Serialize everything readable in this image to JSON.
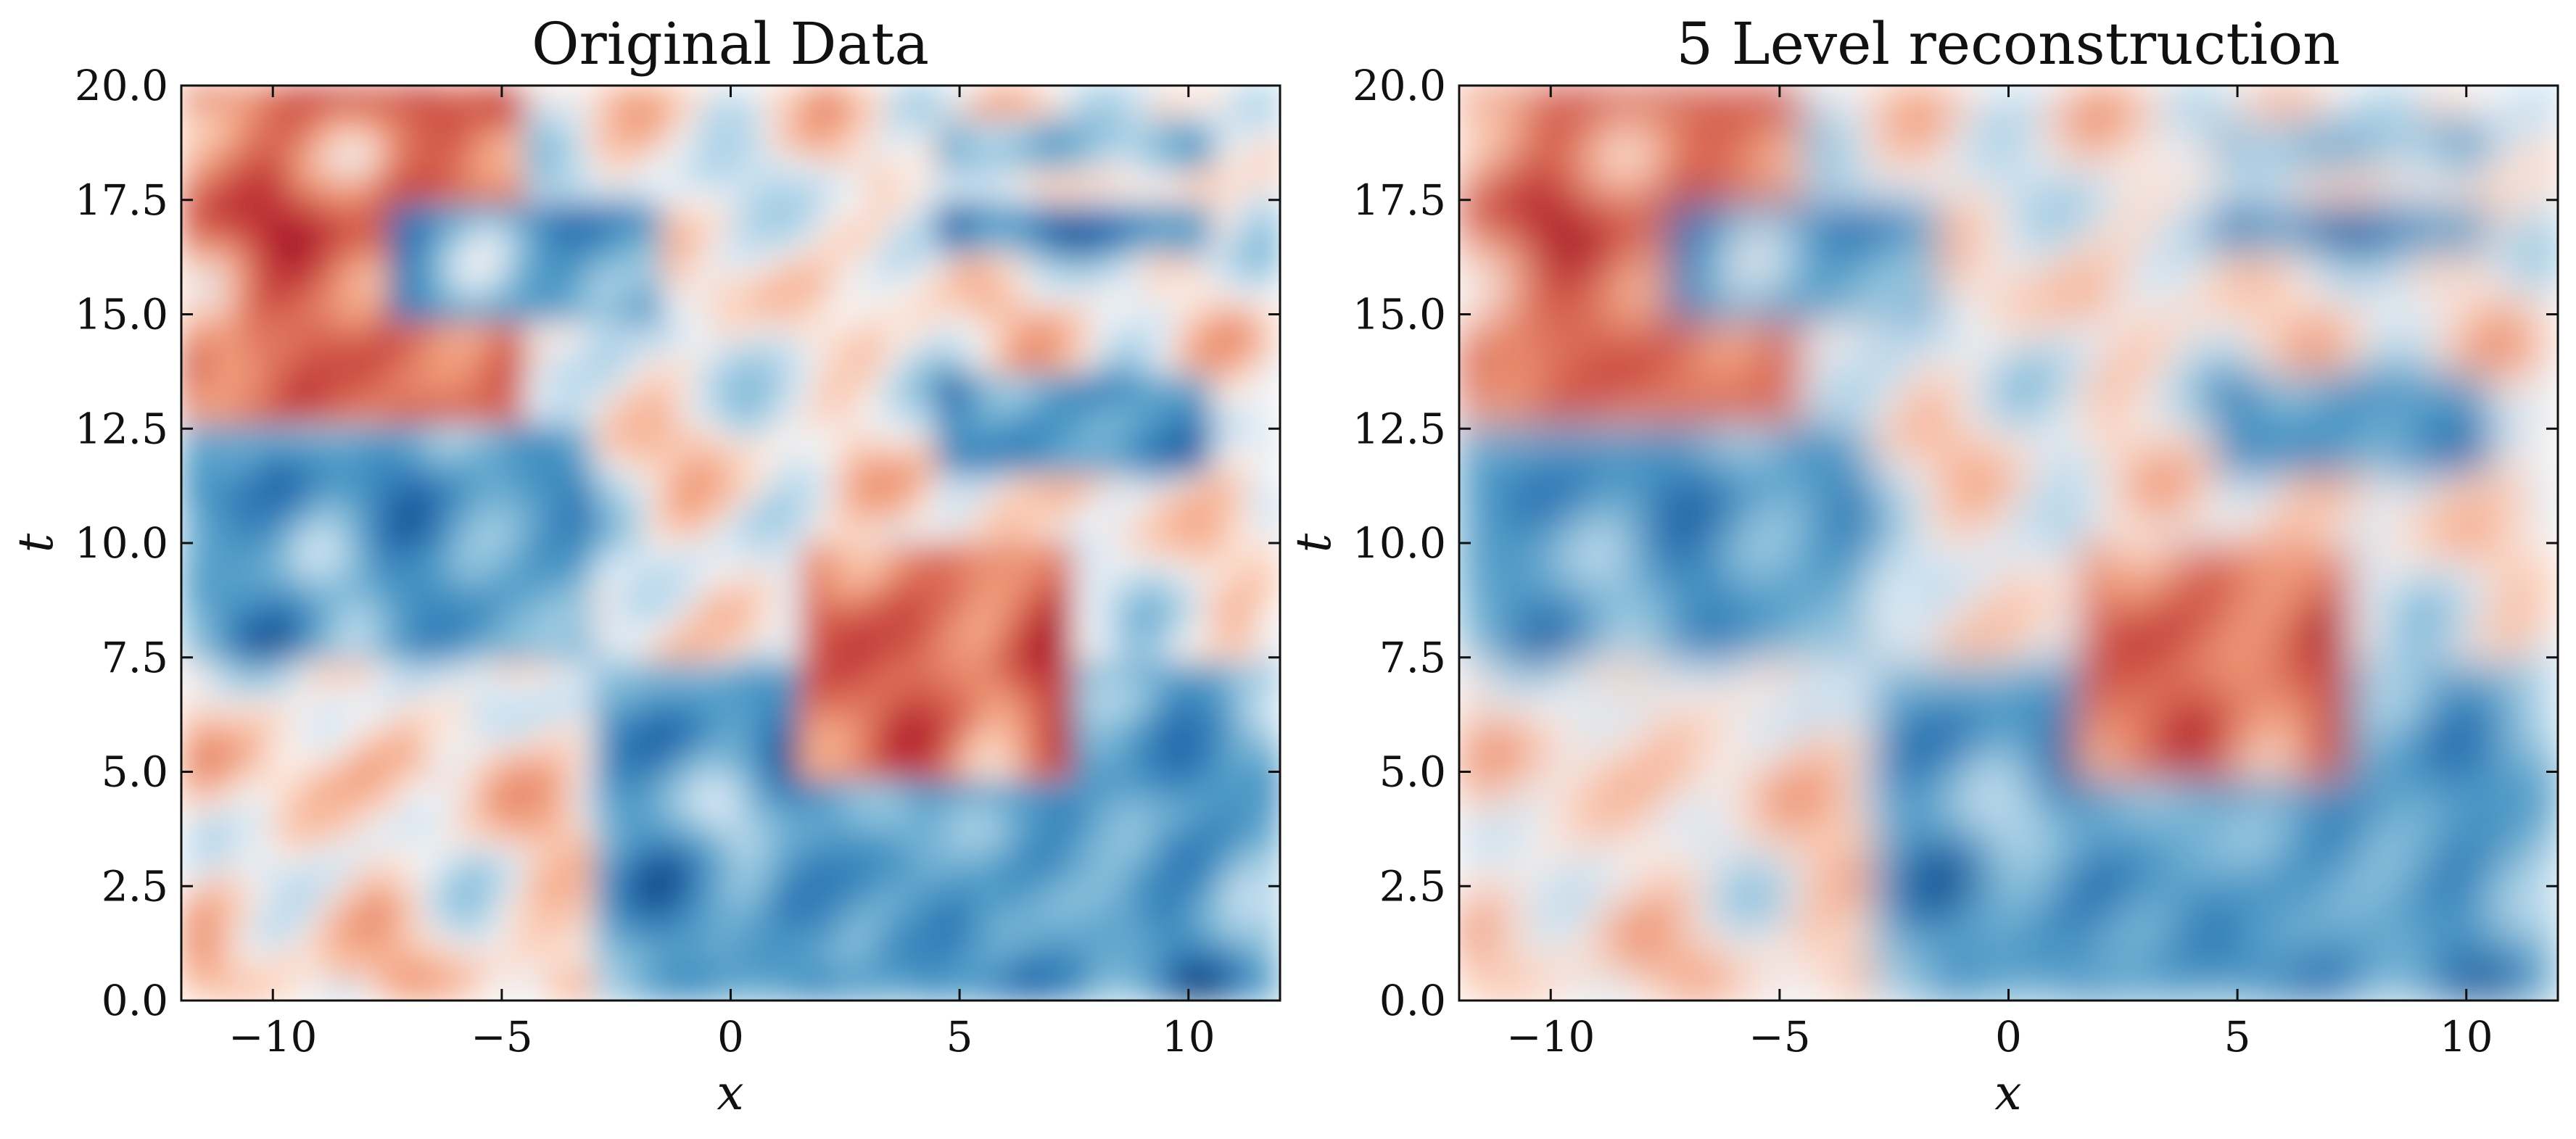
{
  "chart_data": [
    {
      "type": "heatmap",
      "title": "Original Data",
      "xlabel": "x",
      "ylabel": "t",
      "xlim": [
        -12,
        12
      ],
      "ylim": [
        0,
        20
      ],
      "xticks": [
        "−10",
        "−5",
        "0",
        "5",
        "10"
      ],
      "xtick_values": [
        -10,
        -5,
        0,
        5,
        10
      ],
      "yticks": [
        "0.0",
        "2.5",
        "5.0",
        "7.5",
        "10.0",
        "12.5",
        "15.0",
        "17.5",
        "20.0"
      ],
      "ytick_values": [
        0,
        2.5,
        5,
        7.5,
        10,
        12.5,
        15,
        17.5,
        20
      ],
      "colormap": "RdBu (red positive, blue negative)",
      "grid": false,
      "regions": [
        {
          "x": [
            -12,
            -4.5
          ],
          "t": [
            12.5,
            20
          ],
          "sign": "red"
        },
        {
          "x": [
            -7.6,
            -1.6
          ],
          "t": [
            15,
            17.5
          ],
          "sign": "blue"
        },
        {
          "x": [
            -12,
            -3
          ],
          "t": [
            7.5,
            12.5
          ],
          "sign": "blue"
        },
        {
          "x": [
            -12,
            -3
          ],
          "t": [
            0,
            7.5
          ],
          "sign": "mixed"
        },
        {
          "x": [
            -3,
            12
          ],
          "t": [
            0,
            7.5
          ],
          "sign": "blue"
        },
        {
          "x": [
            1.5,
            7.6
          ],
          "t": [
            7.5,
            10
          ],
          "sign": "red"
        },
        {
          "x": [
            1.5,
            7.6
          ],
          "t": [
            5,
            7.5
          ],
          "sign": "red"
        },
        {
          "x": [
            4.6,
            10.6
          ],
          "t": [
            11.3,
            13.7
          ],
          "sign": "blue"
        },
        {
          "x": [
            4.6,
            10.6
          ],
          "t": [
            16.3,
            17.3
          ],
          "sign": "blue"
        },
        {
          "x": [
            4.6,
            10.6
          ],
          "t": [
            18.3,
            19.3
          ],
          "sign": "blue"
        }
      ]
    },
    {
      "type": "heatmap",
      "title": "5 Level reconstruction",
      "xlabel": "x",
      "ylabel": "t",
      "xlim": [
        -12,
        12
      ],
      "ylim": [
        0,
        20
      ],
      "xticks": [
        "−10",
        "−5",
        "0",
        "5",
        "10"
      ],
      "xtick_values": [
        -10,
        -5,
        0,
        5,
        10
      ],
      "yticks": [
        "0.0",
        "2.5",
        "5.0",
        "7.5",
        "10.0",
        "12.5",
        "15.0",
        "17.5",
        "20.0"
      ],
      "ytick_values": [
        0,
        2.5,
        5,
        7.5,
        10,
        12.5,
        15,
        17.5,
        20
      ],
      "colormap": "RdBu (red positive, blue negative)",
      "grid": false,
      "regions": [
        {
          "x": [
            -12,
            -4.5
          ],
          "t": [
            12.5,
            20
          ],
          "sign": "red"
        },
        {
          "x": [
            -7.6,
            -1.6
          ],
          "t": [
            15,
            17.5
          ],
          "sign": "blue"
        },
        {
          "x": [
            -12,
            -3
          ],
          "t": [
            7.5,
            12.5
          ],
          "sign": "blue"
        },
        {
          "x": [
            -12,
            -3
          ],
          "t": [
            0,
            7.5
          ],
          "sign": "mixed"
        },
        {
          "x": [
            -3,
            12
          ],
          "t": [
            0,
            7.5
          ],
          "sign": "blue"
        },
        {
          "x": [
            1.5,
            7.6
          ],
          "t": [
            7.5,
            10
          ],
          "sign": "red"
        },
        {
          "x": [
            1.5,
            7.6
          ],
          "t": [
            5,
            7.5
          ],
          "sign": "red"
        },
        {
          "x": [
            4.6,
            10.6
          ],
          "t": [
            11.3,
            13.7
          ],
          "sign": "blue"
        },
        {
          "x": [
            4.6,
            10.6
          ],
          "t": [
            16.3,
            17.3
          ],
          "sign": "blue"
        },
        {
          "x": [
            4.6,
            10.6
          ],
          "t": [
            18.3,
            19.3
          ],
          "sign": "blue"
        }
      ]
    }
  ]
}
